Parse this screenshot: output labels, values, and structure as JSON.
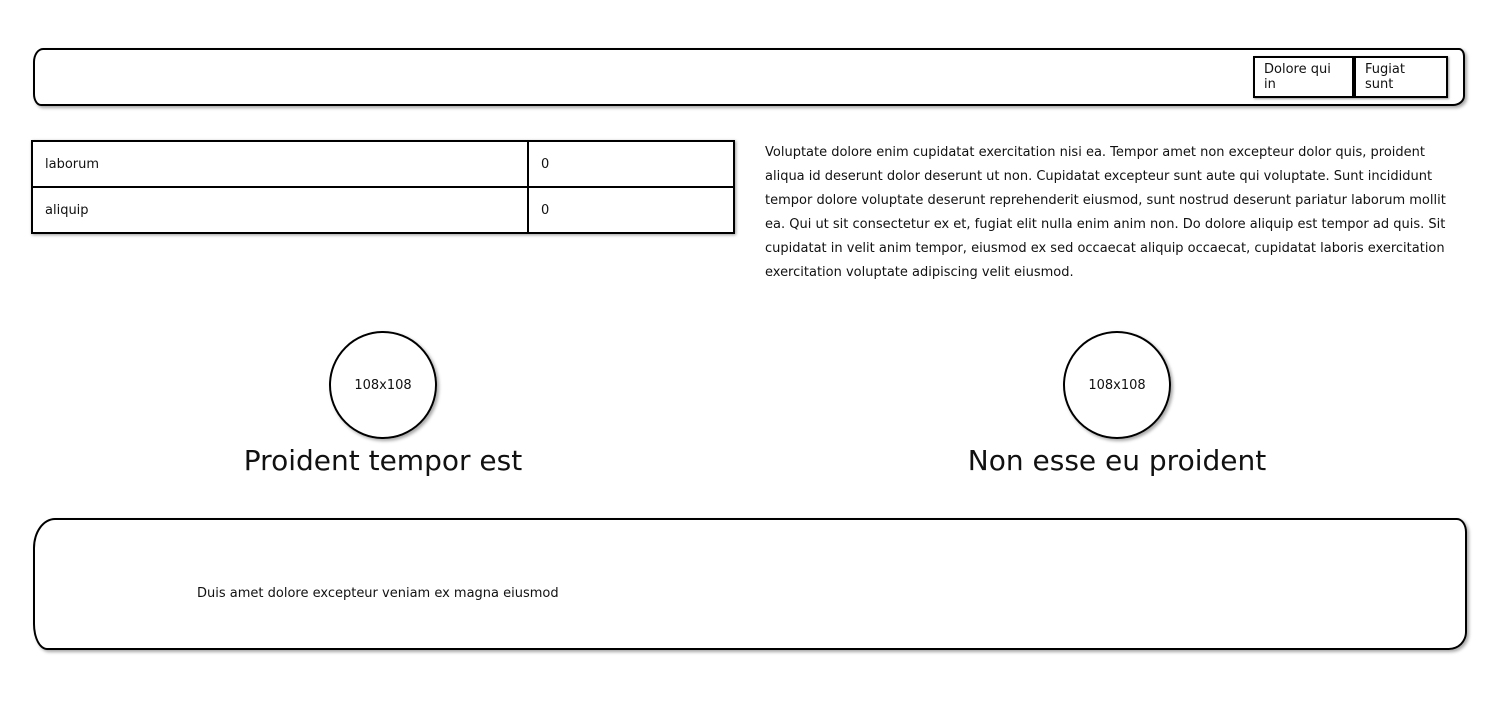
{
  "header": {
    "nav": [
      {
        "label": "Dolore qui in"
      },
      {
        "label": "Fugiat sunt"
      }
    ]
  },
  "table": {
    "rows": [
      {
        "name": "laborum",
        "value": "0"
      },
      {
        "name": "aliquip",
        "value": "0"
      }
    ]
  },
  "paragraph": "Voluptate dolore enim cupidatat exercitation nisi ea. Tempor amet non excepteur dolor quis, proident aliqua id deserunt dolor deserunt ut non. Cupidatat excepteur sunt aute qui voluptate. Sunt incididunt tempor dolore voluptate deserunt reprehenderit eiusmod, sunt nostrud deserunt pariatur laborum mollit ea. Qui ut sit consectetur ex et, fugiat elit nulla enim anim non. Do dolore aliquip est tempor ad quis. Sit cupidatat in velit anim tempor, eiusmod ex sed occaecat aliquip occaecat, cupidatat laboris exercitation exercitation voluptate adipiscing velit eiusmod.",
  "features": [
    {
      "image_label": "108x108",
      "title": "Proident tempor est"
    },
    {
      "image_label": "108x108",
      "title": "Non esse eu proident"
    }
  ],
  "footer": {
    "text": "Duis amet dolore excepteur veniam ex magna eiusmod"
  }
}
